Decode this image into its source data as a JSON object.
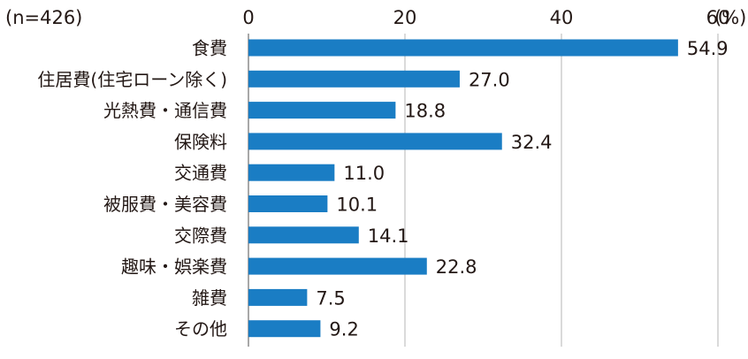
{
  "chart_data": {
    "type": "bar",
    "orientation": "horizontal",
    "sample_note": "(n=426)",
    "unit": "(%)",
    "categories": [
      "食費",
      "住居費(住宅ローン除く)",
      "光熱費・通信費",
      "保険料",
      "交通費",
      "被服費・美容費",
      "交際費",
      "趣味・娯楽費",
      "雑費",
      "その他"
    ],
    "values": [
      54.9,
      27.0,
      18.8,
      32.4,
      11.0,
      10.1,
      14.1,
      22.8,
      7.5,
      9.2
    ],
    "value_labels": [
      "54.9",
      "27.0",
      "18.8",
      "32.4",
      "11.0",
      "10.1",
      "14.1",
      "22.8",
      "7.5",
      "9.2"
    ],
    "xticks": [
      0,
      20,
      40,
      60
    ],
    "xtick_labels": [
      "0",
      "20",
      "40",
      "60"
    ],
    "xlim": [
      0,
      60
    ],
    "grid": true,
    "legend": "none",
    "bar_color": "#1a7dc4",
    "grid_color": "#b5b5b5"
  }
}
